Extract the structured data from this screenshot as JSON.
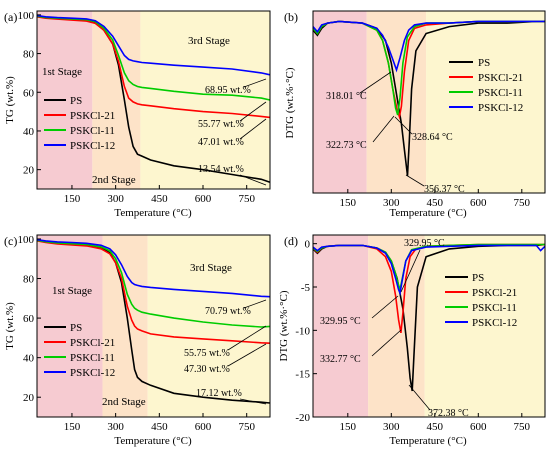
{
  "chart_data": [
    {
      "type": "line",
      "panel_label": "(a)",
      "xlabel": "Temperature (°C)",
      "ylabel": "TG (wt.%)",
      "xlim": [
        30,
        830
      ],
      "ylim": [
        10,
        102
      ],
      "xticks": [
        150,
        300,
        450,
        600,
        750
      ],
      "yticks": [
        20,
        40,
        60,
        80,
        100
      ],
      "bands": [
        {
          "from": 30,
          "to": 220,
          "color": "#f6cbd1"
        },
        {
          "from": 220,
          "to": 385,
          "color": "#fde3c8"
        },
        {
          "from": 385,
          "to": 830,
          "color": "#fdf6cf"
        }
      ],
      "series": [
        {
          "name": "PS",
          "color": "#000000",
          "x": [
            30,
            60,
            100,
            150,
            200,
            230,
            260,
            290,
            310,
            330,
            345,
            360,
            375,
            390,
            420,
            500,
            600,
            700,
            800,
            830
          ],
          "y": [
            99.5,
            98.7,
            98.3,
            97.9,
            97.3,
            96,
            92,
            85,
            74,
            56,
            42,
            32,
            28,
            27,
            25,
            22,
            20,
            17.5,
            15,
            13.5
          ]
        },
        {
          "name": "PSKCl-21",
          "color": "#ff0000",
          "x": [
            30,
            60,
            100,
            150,
            200,
            230,
            260,
            290,
            310,
            330,
            345,
            360,
            375,
            390,
            420,
            500,
            600,
            700,
            800,
            830
          ],
          "y": [
            99,
            98.3,
            97.8,
            97.3,
            96.8,
            95.6,
            92,
            85,
            76,
            63,
            57,
            55,
            54,
            53.5,
            53,
            51.5,
            50,
            49,
            47.5,
            47
          ]
        },
        {
          "name": "PSKCl-11",
          "color": "#00cc00",
          "x": [
            30,
            60,
            100,
            150,
            200,
            230,
            260,
            290,
            310,
            330,
            345,
            360,
            375,
            390,
            420,
            500,
            600,
            700,
            800,
            830
          ],
          "y": [
            99.3,
            98.7,
            98.3,
            97.9,
            97.5,
            96.5,
            93,
            87,
            79,
            70,
            66,
            64,
            63,
            62.5,
            62,
            60.5,
            59,
            58.5,
            57,
            56
          ]
        },
        {
          "name": "PSKCl-12",
          "color": "#0000ff",
          "x": [
            30,
            60,
            100,
            150,
            200,
            230,
            260,
            290,
            310,
            330,
            345,
            360,
            375,
            390,
            420,
            500,
            600,
            700,
            800,
            830
          ],
          "y": [
            99.6,
            99,
            98.6,
            98.3,
            97.9,
            97,
            94,
            89,
            84,
            79,
            77,
            76.2,
            75.8,
            75.4,
            75,
            74,
            73,
            72,
            70,
            69
          ]
        }
      ],
      "annotations": [
        {
          "text": "68.95 wt.%",
          "x": 780,
          "y": 69
        },
        {
          "text": "55.77 wt.%",
          "x": 780,
          "y": 56
        },
        {
          "text": "47.01 wt.%",
          "x": 780,
          "y": 47
        },
        {
          "text": "13.54 wt.%",
          "x": 780,
          "y": 13.5
        }
      ],
      "stage_labels": [
        "1st Stage",
        "2nd Stage",
        "3rd Stage"
      ],
      "legend_position": "center-left"
    },
    {
      "type": "line",
      "panel_label": "(b)",
      "xlabel": "Temperature (°C)",
      "ylabel": "DTG (wt.%·°C)",
      "xlim": [
        30,
        830
      ],
      "ylim": [
        -10,
        0.5
      ],
      "xticks": [
        150,
        300,
        450,
        600,
        750
      ],
      "yticks": [],
      "bands": [
        {
          "from": 30,
          "to": 215,
          "color": "#f6cbd1"
        },
        {
          "from": 215,
          "to": 420,
          "color": "#fde3c8"
        },
        {
          "from": 420,
          "to": 830,
          "color": "#fdf6cf"
        }
      ],
      "series": [
        {
          "name": "PS",
          "color": "#000000",
          "x": [
            30,
            45,
            60,
            80,
            120,
            200,
            250,
            280,
            300,
            320,
            335,
            345,
            356,
            362,
            370,
            385,
            420,
            500,
            600,
            700,
            800,
            830
          ],
          "y": [
            -0.6,
            -0.9,
            -0.5,
            -0.2,
            -0.1,
            -0.2,
            -0.5,
            -1.2,
            -2.5,
            -4.5,
            -6,
            -7.5,
            -9,
            -7,
            -4,
            -1.8,
            -0.8,
            -0.4,
            -0.2,
            -0.2,
            -0.1,
            -0.1
          ]
        },
        {
          "name": "PSKCl-21",
          "color": "#ff0000",
          "x": [
            30,
            45,
            60,
            80,
            120,
            200,
            250,
            270,
            290,
            305,
            320,
            328,
            335,
            345,
            360,
            380,
            420,
            500,
            600,
            700,
            800,
            830
          ],
          "y": [
            -0.5,
            -0.8,
            -0.4,
            -0.2,
            -0.1,
            -0.2,
            -0.6,
            -1.2,
            -2.5,
            -4,
            -5.2,
            -5.6,
            -5,
            -3,
            -1.2,
            -0.5,
            -0.3,
            -0.2,
            -0.1,
            -0.1,
            -0.1,
            -0.1
          ]
        },
        {
          "name": "PSKCl-11",
          "color": "#00cc00",
          "x": [
            30,
            45,
            60,
            80,
            120,
            200,
            250,
            270,
            290,
            305,
            315,
            322,
            330,
            340,
            355,
            380,
            420,
            500,
            600,
            700,
            800,
            830
          ],
          "y": [
            -0.5,
            -0.8,
            -0.4,
            -0.2,
            -0.1,
            -0.2,
            -0.6,
            -1.2,
            -2.5,
            -4,
            -5.1,
            -5.5,
            -4.5,
            -2.5,
            -1,
            -0.4,
            -0.2,
            -0.2,
            -0.1,
            -0.1,
            -0.1,
            -0.1
          ]
        },
        {
          "name": "PSKCl-12",
          "color": "#0000ff",
          "x": [
            30,
            45,
            60,
            80,
            120,
            200,
            250,
            270,
            290,
            305,
            318,
            330,
            345,
            360,
            380,
            420,
            500,
            600,
            700,
            800,
            830
          ],
          "y": [
            -0.4,
            -0.7,
            -0.3,
            -0.2,
            -0.1,
            -0.2,
            -0.5,
            -0.9,
            -1.6,
            -2.3,
            -2.9,
            -2.2,
            -1.2,
            -0.6,
            -0.3,
            -0.2,
            -0.2,
            -0.1,
            -0.1,
            -0.1,
            -0.1
          ]
        }
      ],
      "annotations": [
        {
          "text": "318.01 °C",
          "x": 318,
          "y": -2.9
        },
        {
          "text": "322.73 °C",
          "x": 322.7,
          "y": -5.5
        },
        {
          "text": "328.64 °C",
          "x": 328.6,
          "y": -5.6
        },
        {
          "text": "356.37 °C",
          "x": 356.4,
          "y": -9
        }
      ],
      "legend_position": "right"
    },
    {
      "type": "line",
      "panel_label": "(c)",
      "xlabel": "Temperature (°C)",
      "ylabel": "TG (wt.%)",
      "xlim": [
        30,
        830
      ],
      "ylim": [
        10,
        102
      ],
      "xticks": [
        150,
        300,
        450,
        600,
        750
      ],
      "yticks": [
        20,
        40,
        60,
        80,
        100
      ],
      "bands": [
        {
          "from": 30,
          "to": 255,
          "color": "#f6cbd1"
        },
        {
          "from": 255,
          "to": 410,
          "color": "#fde3c8"
        },
        {
          "from": 410,
          "to": 830,
          "color": "#fdf6cf"
        }
      ],
      "series": [
        {
          "name": "PS",
          "color": "#000000",
          "x": [
            30,
            60,
            100,
            150,
            200,
            250,
            280,
            300,
            320,
            340,
            355,
            365,
            375,
            390,
            420,
            500,
            600,
            700,
            800,
            830
          ],
          "y": [
            99.5,
            98.6,
            98,
            97.5,
            97,
            95.5,
            93,
            88,
            78,
            60,
            44,
            34,
            30,
            28,
            26,
            22,
            20,
            18.5,
            17.5,
            17.1
          ]
        },
        {
          "name": "PSKCl-21",
          "color": "#ff0000",
          "x": [
            30,
            60,
            100,
            150,
            200,
            250,
            280,
            300,
            320,
            340,
            355,
            365,
            375,
            390,
            420,
            500,
            600,
            700,
            800,
            830
          ],
          "y": [
            99,
            98.2,
            97.5,
            97,
            96.5,
            95,
            92.5,
            88,
            80,
            66,
            59,
            56,
            54.5,
            53.5,
            52,
            50.5,
            49.5,
            48.5,
            47.5,
            47.3
          ]
        },
        {
          "name": "PSKCl-11",
          "color": "#00cc00",
          "x": [
            30,
            60,
            100,
            150,
            200,
            250,
            280,
            300,
            320,
            340,
            355,
            365,
            375,
            390,
            420,
            500,
            600,
            700,
            800,
            830
          ],
          "y": [
            99.3,
            98.6,
            98,
            97.6,
            97.2,
            96,
            94,
            90,
            83,
            72,
            67,
            65,
            64,
            63,
            62,
            60,
            58,
            56.5,
            55.5,
            55.8
          ]
        },
        {
          "name": "PSKCl-12",
          "color": "#0000ff",
          "x": [
            30,
            60,
            100,
            150,
            200,
            250,
            280,
            300,
            320,
            340,
            355,
            365,
            375,
            390,
            420,
            500,
            600,
            700,
            800,
            830
          ],
          "y": [
            99.6,
            99,
            98.5,
            98.2,
            97.8,
            96.8,
            95,
            92,
            87,
            81,
            78,
            77,
            76.5,
            76,
            75.5,
            74.5,
            73.5,
            72.5,
            71,
            70.8
          ]
        }
      ],
      "annotations": [
        {
          "text": "70.79 wt.%",
          "x": 780,
          "y": 70.8
        },
        {
          "text": "55.75 wt.%",
          "x": 780,
          "y": 55.8
        },
        {
          "text": "47.30 wt.%",
          "x": 780,
          "y": 47.3
        },
        {
          "text": "17.12 wt.%",
          "x": 780,
          "y": 17.1
        }
      ],
      "stage_labels": [
        "1st Stage",
        "2nd Stage",
        "3rd Stage"
      ],
      "legend_position": "center-left"
    },
    {
      "type": "line",
      "panel_label": "(d)",
      "xlabel": "Temperature (°C)",
      "ylabel": "DTG (wt.%·°C)",
      "xlim": [
        30,
        830
      ],
      "ylim": [
        -20,
        1
      ],
      "xticks": [
        150,
        300,
        450,
        600,
        750
      ],
      "yticks": [
        0,
        -5,
        -10,
        -15,
        -20
      ],
      "bands": [
        {
          "from": 30,
          "to": 220,
          "color": "#f6cbd1"
        },
        {
          "from": 220,
          "to": 415,
          "color": "#fde3c8"
        },
        {
          "from": 415,
          "to": 830,
          "color": "#fdf6cf"
        }
      ],
      "series": [
        {
          "name": "PS",
          "color": "#000000",
          "x": [
            30,
            45,
            60,
            80,
            120,
            200,
            250,
            280,
            300,
            320,
            340,
            355,
            365,
            372,
            378,
            390,
            420,
            500,
            600,
            700,
            800,
            830
          ],
          "y": [
            -0.6,
            -1.1,
            -0.6,
            -0.3,
            -0.2,
            -0.2,
            -0.5,
            -1,
            -2,
            -4,
            -7.5,
            -12,
            -15.5,
            -17,
            -13,
            -5,
            -1.5,
            -0.6,
            -0.3,
            -0.2,
            -0.2,
            -0.1
          ]
        },
        {
          "name": "PSKCl-21",
          "color": "#ff0000",
          "x": [
            30,
            45,
            60,
            80,
            120,
            200,
            250,
            280,
            300,
            315,
            325,
            333,
            340,
            350,
            365,
            385,
            420,
            500,
            600,
            700,
            800,
            830
          ],
          "y": [
            -0.5,
            -1,
            -0.5,
            -0.3,
            -0.2,
            -0.2,
            -0.6,
            -1.5,
            -3.2,
            -6,
            -8.8,
            -10.3,
            -8,
            -4,
            -1.5,
            -0.6,
            -0.3,
            -0.2,
            -0.1,
            -0.1,
            -0.1,
            -0.1
          ]
        },
        {
          "name": "PSKCl-11",
          "color": "#00cc00",
          "x": [
            30,
            45,
            60,
            80,
            120,
            200,
            250,
            280,
            300,
            315,
            325,
            330,
            338,
            350,
            370,
            420,
            500,
            600,
            700,
            800,
            830
          ],
          "y": [
            -0.5,
            -0.9,
            -0.5,
            -0.3,
            -0.2,
            -0.2,
            -0.5,
            -1,
            -2,
            -3.5,
            -4.8,
            -5.3,
            -4,
            -2,
            -0.7,
            -0.3,
            -0.2,
            -0.1,
            -0.1,
            -0.1,
            -0.1
          ]
        },
        {
          "name": "PSKCl-12",
          "color": "#0000ff",
          "x": [
            30,
            45,
            60,
            80,
            120,
            200,
            250,
            280,
            300,
            315,
            325,
            330,
            338,
            350,
            370,
            420,
            500,
            600,
            700,
            800,
            815,
            830
          ],
          "y": [
            -0.4,
            -0.8,
            -0.4,
            -0.3,
            -0.2,
            -0.2,
            -0.5,
            -1.1,
            -2.3,
            -4,
            -5.3,
            -5.7,
            -4.2,
            -2,
            -0.8,
            -0.4,
            -0.3,
            -0.2,
            -0.2,
            -0.2,
            -0.8,
            -0.3
          ]
        }
      ],
      "annotations": [
        {
          "text": "329.95 °C",
          "x": 330,
          "y": -5.3
        },
        {
          "text": "329.95 °C",
          "x": 330,
          "y": -5.7
        },
        {
          "text": "332.77 °C",
          "x": 332.8,
          "y": -10.3
        },
        {
          "text": "372.38 °C",
          "x": 372.4,
          "y": -17
        }
      ],
      "legend_position": "right"
    }
  ]
}
